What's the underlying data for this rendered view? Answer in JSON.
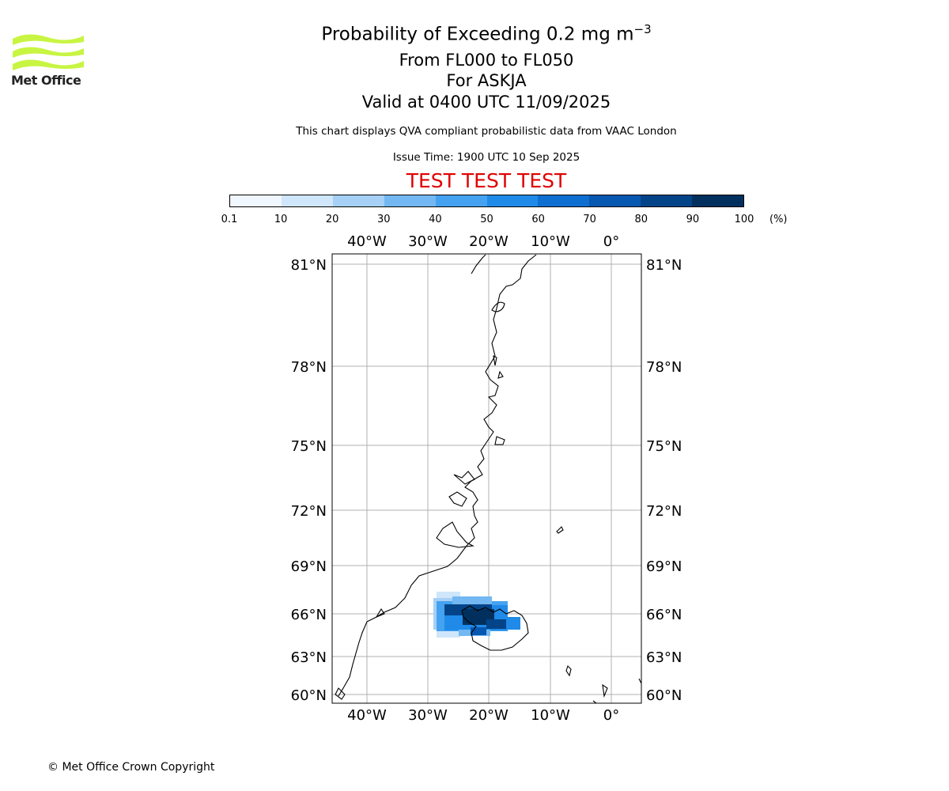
{
  "header": {
    "title_main": "Probability of Exceeding 0.2 mg m",
    "title_superscript": "−3",
    "level_range": "From FL000 to FL050",
    "volcano": "For ASKJA",
    "valid_time": "Valid at 0400 UTC 11/09/2025",
    "description": "This chart displays QVA compliant probabilistic data from VAAC London",
    "issue_time": "Issue Time: 1900 UTC 10 Sep 2025",
    "test_banner": "TEST TEST TEST"
  },
  "logo": {
    "text": "Met Office",
    "color": "#c8f542"
  },
  "colorbar": {
    "ticks": [
      "0.1",
      "10",
      "20",
      "30",
      "40",
      "50",
      "60",
      "70",
      "80",
      "90",
      "100"
    ],
    "unit": "(%)",
    "colors": [
      "#f0f7ff",
      "#cfe6fb",
      "#a6d0f5",
      "#73b8f2",
      "#45a2f0",
      "#1f8ae8",
      "#0f6fd0",
      "#0658b0",
      "#034489",
      "#02305e"
    ]
  },
  "map": {
    "lon_labels": [
      "40°W",
      "30°W",
      "20°W",
      "10°W",
      "0°"
    ],
    "lat_labels": [
      "81°N",
      "78°N",
      "75°N",
      "72°N",
      "69°N",
      "66°N",
      "63°N",
      "60°N"
    ],
    "gridline_color": "#b0b0b0",
    "coastline_color": "#000000"
  },
  "footer": {
    "copyright": "© Met Office Crown Copyright"
  }
}
